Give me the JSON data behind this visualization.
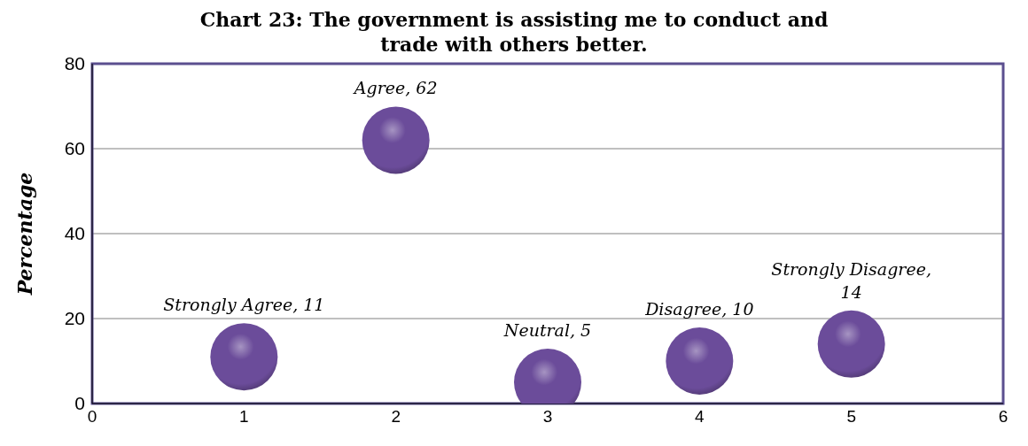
{
  "chart_data": {
    "type": "bubble",
    "title": "Chart 23:  The government is assisting me to conduct and trade with others better.",
    "ylabel": "Percentage",
    "x": [
      1,
      2,
      3,
      4,
      5
    ],
    "values": [
      11,
      62,
      5,
      10,
      14
    ],
    "sizes": [
      1,
      1,
      1,
      1,
      1
    ],
    "value_labels": [
      "Strongly Agree, 11",
      "Agree, 62",
      "Neutral, 5",
      "Disagree, 10",
      "Strongly Disagree, 14"
    ],
    "color": "#6b4c9a",
    "xlim": [
      0,
      6
    ],
    "xticks": [
      0,
      1,
      2,
      3,
      4,
      5,
      6
    ],
    "ylim": [
      0,
      80
    ],
    "yticks": [
      0,
      20,
      40,
      60,
      80
    ],
    "grid": "y",
    "legend": false
  }
}
